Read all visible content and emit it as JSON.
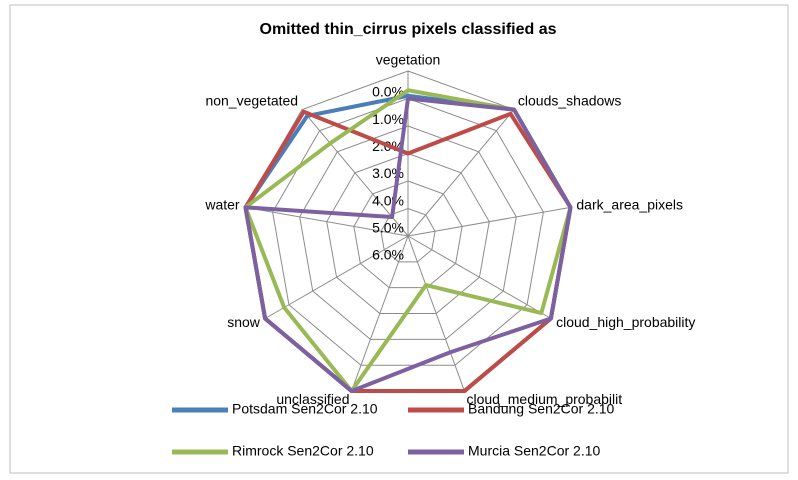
{
  "chart_data": {
    "type": "radar",
    "title": "Omitted thin_cirrus pixels classified as",
    "categories": [
      "vegetation",
      "clouds_shadows",
      "dark_area_pixels",
      "cloud_high_probability",
      "cloud_medium_probabilit",
      "unclassified",
      "snow",
      "water",
      "non_vegetated"
    ],
    "ylim": [
      0,
      6
    ],
    "y_reversed": true,
    "yticks": [
      {
        "value": 0,
        "label": "0.0%"
      },
      {
        "value": 1,
        "label": "1.0%"
      },
      {
        "value": 2,
        "label": "2.0%"
      },
      {
        "value": 3,
        "label": "3.0%"
      },
      {
        "value": 4,
        "label": "4.0%"
      },
      {
        "value": 5,
        "label": "5.0%"
      },
      {
        "value": 6,
        "label": "6.0%"
      }
    ],
    "grid": true,
    "series": [
      {
        "name": "Potsdam Sen2Cor 2.10",
        "color": "#4a7ebb",
        "values": [
          0.9,
          0,
          0,
          0,
          0,
          0,
          0,
          0,
          0.3
        ]
      },
      {
        "name": "Bandung  Sen2Cor 2.10",
        "color": "#be4b48",
        "values": [
          3.0,
          0.2,
          0,
          0,
          0,
          0,
          0,
          0,
          0.1
        ]
      },
      {
        "name": "Rimrock Sen2Cor 2.10",
        "color": "#98b954",
        "values": [
          0.7,
          0,
          0,
          0.4,
          4.1,
          0,
          0.8,
          0,
          1.6
        ]
      },
      {
        "name": "Murcia Sen2Cor 2.10",
        "color": "#7d60a0",
        "values": [
          1.0,
          0,
          0,
          0,
          1.5,
          0,
          0,
          0,
          5.1
        ]
      }
    ]
  }
}
